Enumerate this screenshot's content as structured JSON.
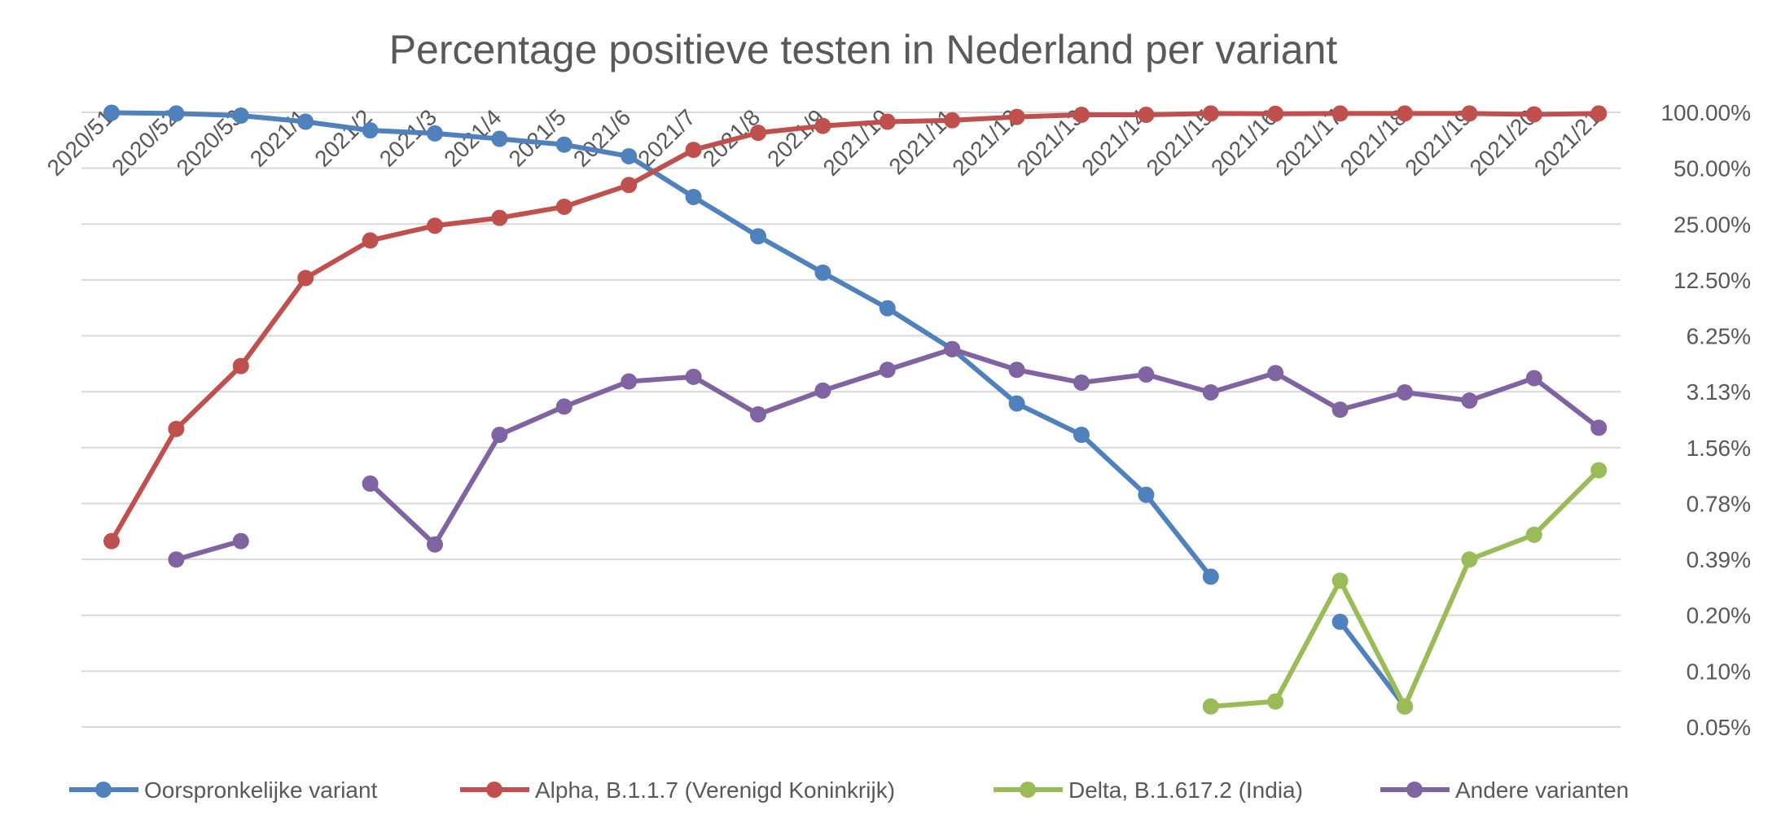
{
  "chart_data": {
    "type": "line",
    "title": "Percentage positieve testen in Nederland per variant",
    "y_scale": "log2",
    "ylim": [
      0.05,
      100
    ],
    "y_ticks": [
      "100.00%",
      "50.00%",
      "25.00%",
      "12.50%",
      "6.25%",
      "3.13%",
      "1.56%",
      "0.78%",
      "0.39%",
      "0.20%",
      "0.10%",
      "0.05%"
    ],
    "y_tick_values": [
      100,
      50,
      25,
      12.5,
      6.25,
      3.125,
      1.5625,
      0.78125,
      0.390625,
      0.1953125,
      0.09765625,
      0.048828125
    ],
    "y_axis_position": "right",
    "grid": true,
    "legend_position": "bottom",
    "categories": [
      "2020/51",
      "2020/52",
      "2020/53",
      "2021/1",
      "2021/2",
      "2021/3",
      "2021/4",
      "2021/5",
      "2021/6",
      "2021/7",
      "2021/8",
      "2021/9",
      "2021/10",
      "2021/11",
      "2021/12",
      "2021/13",
      "2021/14",
      "2021/15",
      "2021/16",
      "2021/17",
      "2021/18",
      "2021/19",
      "2021/20",
      "2021/21"
    ],
    "series": [
      {
        "name": "Oorspronkelijke variant",
        "color": "#4F81BD",
        "values": [
          99.5,
          98.6,
          96,
          89,
          80,
          77,
          72,
          67,
          58,
          35,
          21.5,
          13.7,
          8.8,
          5.3,
          2.7,
          1.83,
          0.87,
          0.315,
          null,
          0.18,
          0.063,
          null,
          null,
          null
        ]
      },
      {
        "name": "Alpha, B.1.1.7 (Verenigd Koninkrijk)",
        "color": "#C0504D",
        "values": [
          0.49,
          1.97,
          4.3,
          12.8,
          20.4,
          24.5,
          27,
          31,
          40.6,
          62.8,
          77.6,
          84.5,
          89,
          90.6,
          94.5,
          97,
          97,
          98.6,
          98.3,
          98.6,
          98.6,
          98.6,
          97.5,
          98.6
        ]
      },
      {
        "name": "Delta, B.1.617.2 (India)",
        "color": "#9BBB59",
        "values": [
          null,
          null,
          null,
          null,
          null,
          null,
          null,
          null,
          null,
          null,
          null,
          null,
          null,
          null,
          null,
          null,
          null,
          0.063,
          0.067,
          0.3,
          0.063,
          0.39,
          0.53,
          1.18
        ]
      },
      {
        "name": "Andere varianten",
        "color": "#8064A2",
        "values": [
          null,
          0.39,
          0.49,
          null,
          1.0,
          0.47,
          1.83,
          2.6,
          3.55,
          3.76,
          2.36,
          3.17,
          4.1,
          5.3,
          4.1,
          3.5,
          3.87,
          3.1,
          3.94,
          2.5,
          3.1,
          2.8,
          3.7,
          2.0
        ]
      }
    ]
  }
}
